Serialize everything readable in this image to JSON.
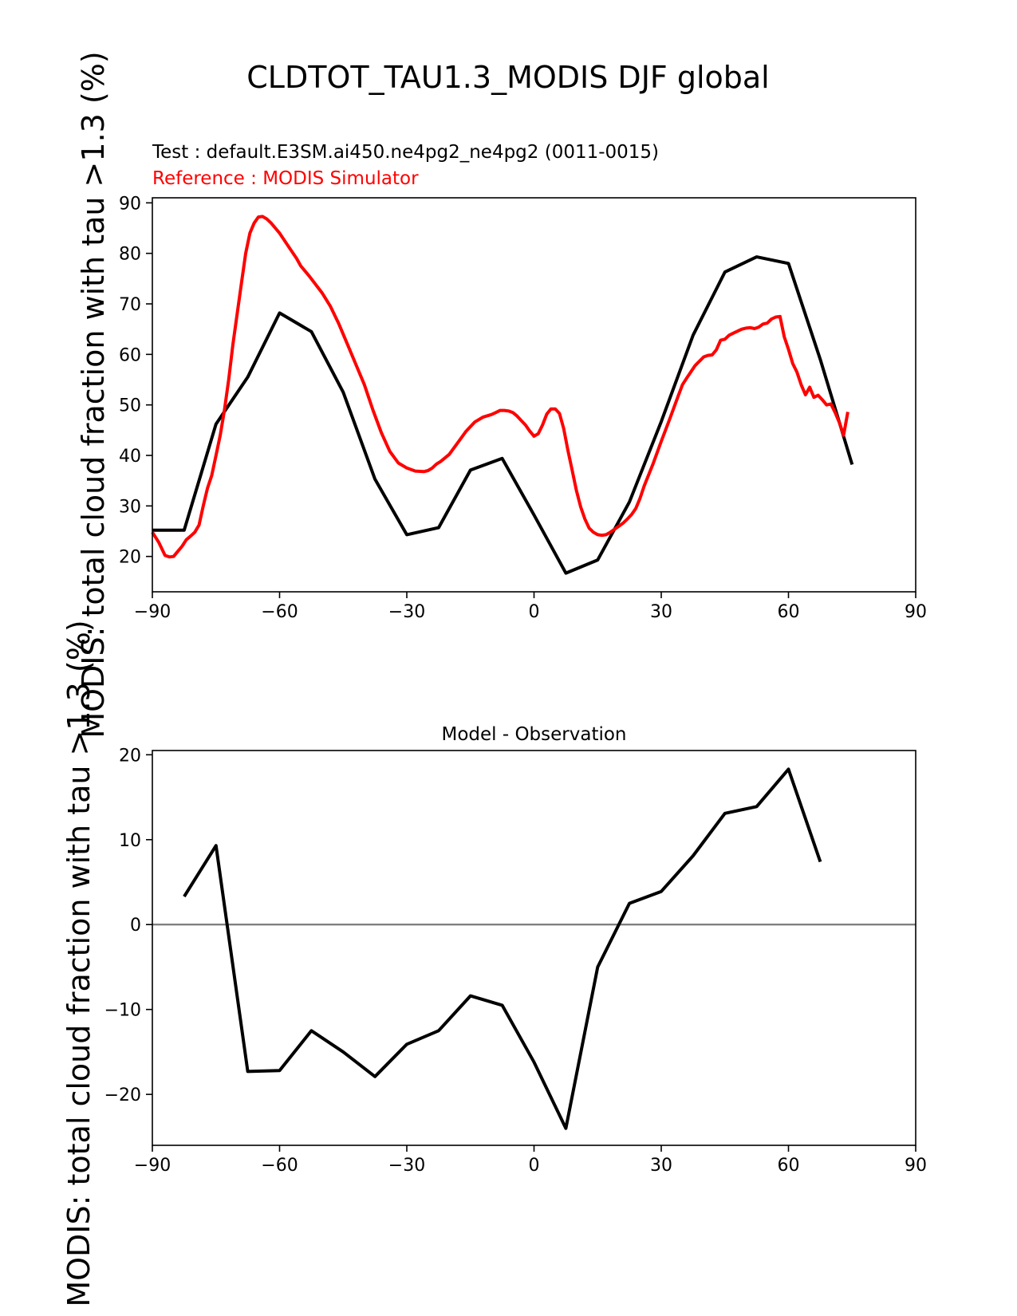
{
  "figure_title": "CLDTOT_TAU1.3_MODIS DJF global",
  "chart_data": [
    {
      "type": "line",
      "title_test": "Test : default.E3SM.ai450.ne4pg2_ne4pg2 (0011-0015)",
      "title_reference": "Reference : MODIS Simulator",
      "ylabel": "MODIS: total cloud fraction with tau >1.3 (%)",
      "xlabel": "",
      "xlim": [
        -90,
        90
      ],
      "ylim": [
        13,
        91
      ],
      "xticks": [
        -90,
        -60,
        -30,
        0,
        30,
        60,
        90
      ],
      "xtick_labels": [
        "−90",
        "−60",
        "−30",
        "0",
        "30",
        "60",
        "90"
      ],
      "yticks": [
        20,
        30,
        40,
        50,
        60,
        70,
        80,
        90
      ],
      "ytick_labels": [
        "20",
        "30",
        "40",
        "50",
        "60",
        "70",
        "80",
        "90"
      ],
      "grid": false,
      "series": [
        {
          "color": "#000000",
          "x": [
            -90,
            -82.5,
            -75,
            -67.5,
            -60,
            -52.5,
            -45,
            -37.5,
            -30,
            -22.5,
            -15,
            -7.5,
            0,
            7.5,
            15,
            22.5,
            30,
            37.5,
            45,
            52.5,
            60,
            67.5,
            75
          ],
          "y": [
            25.2,
            25.2,
            46.2,
            55.5,
            68.2,
            64.5,
            52.5,
            35.3,
            24.3,
            25.7,
            37.1,
            39.4,
            28.2,
            16.7,
            19.3,
            30.8,
            46.7,
            63.8,
            76.3,
            79.3,
            78.0,
            59.0,
            38.2
          ]
        },
        {
          "color": "#ff0000",
          "x": [
            -90,
            -88.5,
            -87,
            -86,
            -85,
            -84,
            -83,
            -82,
            -81,
            -80,
            -79,
            -78,
            -77,
            -76,
            -75,
            -74,
            -73,
            -72,
            -71,
            -70,
            -69,
            -68,
            -67,
            -66,
            -65,
            -64,
            -63,
            -62,
            -61,
            -60,
            -58,
            -56,
            -55,
            -53,
            -50,
            -48,
            -46,
            -44,
            -42,
            -40,
            -38,
            -36,
            -34,
            -32,
            -30,
            -28,
            -26,
            -25,
            -24,
            -23,
            -22,
            -20,
            -18,
            -16,
            -14,
            -12,
            -10,
            -9,
            -8,
            -7,
            -6,
            -5,
            -4,
            -3,
            -2,
            -1,
            0,
            1,
            2,
            3,
            4,
            5,
            6,
            7,
            8,
            9,
            10,
            11,
            12,
            13,
            14,
            15,
            16,
            17,
            18,
            19,
            20,
            21,
            22,
            23,
            24,
            25,
            26,
            28,
            30,
            32,
            34,
            35,
            36,
            38,
            40,
            41,
            42,
            43,
            44,
            45,
            46,
            47,
            48,
            49,
            50,
            51,
            52,
            53,
            54,
            55,
            56,
            57,
            58,
            59,
            60,
            61,
            62,
            63,
            64,
            65,
            66,
            67,
            68,
            69,
            70,
            71,
            72,
            73,
            74
          ],
          "y": [
            24.8,
            22.8,
            20.2,
            19.9,
            20.0,
            21.0,
            22.0,
            23.3,
            24.0,
            24.8,
            26.2,
            30.0,
            33.5,
            36.0,
            40.0,
            44.0,
            49.0,
            55.0,
            62.0,
            68.0,
            74.0,
            80.0,
            84.0,
            86.0,
            87.2,
            87.3,
            86.8,
            86.0,
            85.0,
            84.0,
            81.5,
            79.0,
            77.5,
            75.5,
            72.2,
            69.5,
            66.0,
            62.0,
            58.0,
            54.0,
            49.0,
            44.5,
            40.8,
            38.5,
            37.5,
            36.9,
            36.8,
            37.0,
            37.5,
            38.3,
            38.8,
            40.2,
            42.5,
            44.8,
            46.6,
            47.6,
            48.1,
            48.5,
            48.9,
            48.9,
            48.8,
            48.5,
            47.8,
            46.9,
            46.0,
            44.8,
            43.8,
            44.3,
            46.0,
            48.2,
            49.2,
            49.2,
            48.3,
            45.3,
            41.0,
            37.0,
            33.0,
            29.8,
            27.4,
            25.6,
            24.8,
            24.3,
            24.2,
            24.3,
            24.8,
            25.4,
            26.0,
            26.6,
            27.4,
            28.3,
            29.5,
            31.5,
            34.0,
            38.2,
            42.8,
            47.2,
            51.8,
            54.0,
            55.3,
            57.8,
            59.5,
            59.8,
            59.9,
            60.9,
            62.8,
            63.0,
            63.8,
            64.2,
            64.6,
            65.0,
            65.2,
            65.3,
            65.1,
            65.4,
            66.0,
            66.2,
            67.0,
            67.4,
            67.5,
            63.5,
            61.0,
            58.2,
            56.5,
            54.0,
            52.0,
            53.5,
            51.5,
            51.9,
            51.0,
            50.0,
            50.2,
            48.5,
            46.5,
            44.0,
            48.6
          ]
        }
      ]
    },
    {
      "type": "line",
      "title": "Model - Observation",
      "ylabel": "MODIS: total cloud fraction with tau >1.3 (%)",
      "xlabel": "",
      "xlim": [
        -90,
        90
      ],
      "ylim": [
        -26,
        20.5
      ],
      "xticks": [
        -90,
        -60,
        -30,
        0,
        30,
        60,
        90
      ],
      "xtick_labels": [
        "−90",
        "−60",
        "−30",
        "0",
        "30",
        "60",
        "90"
      ],
      "yticks": [
        -20,
        -10,
        0,
        10,
        20
      ],
      "ytick_labels": [
        "−20",
        "−10",
        "0",
        "10",
        "20"
      ],
      "zero_line": {
        "y": 0,
        "color": "#808080"
      },
      "grid": false,
      "series": [
        {
          "color": "#000000",
          "x": [
            -82.5,
            -75,
            -67.5,
            -60,
            -52.5,
            -45,
            -37.5,
            -30,
            -22.5,
            -15,
            -7.5,
            0,
            7.5,
            15,
            22.5,
            30,
            37.5,
            45,
            52.5,
            60,
            67.5
          ],
          "y": [
            3.3,
            9.3,
            -17.3,
            -17.2,
            -12.5,
            -15.0,
            -17.9,
            -14.1,
            -12.5,
            -8.4,
            -9.5,
            -16.2,
            -24.0,
            -5.0,
            2.5,
            3.9,
            8.1,
            13.1,
            13.9,
            18.3,
            7.4
          ]
        }
      ]
    }
  ]
}
